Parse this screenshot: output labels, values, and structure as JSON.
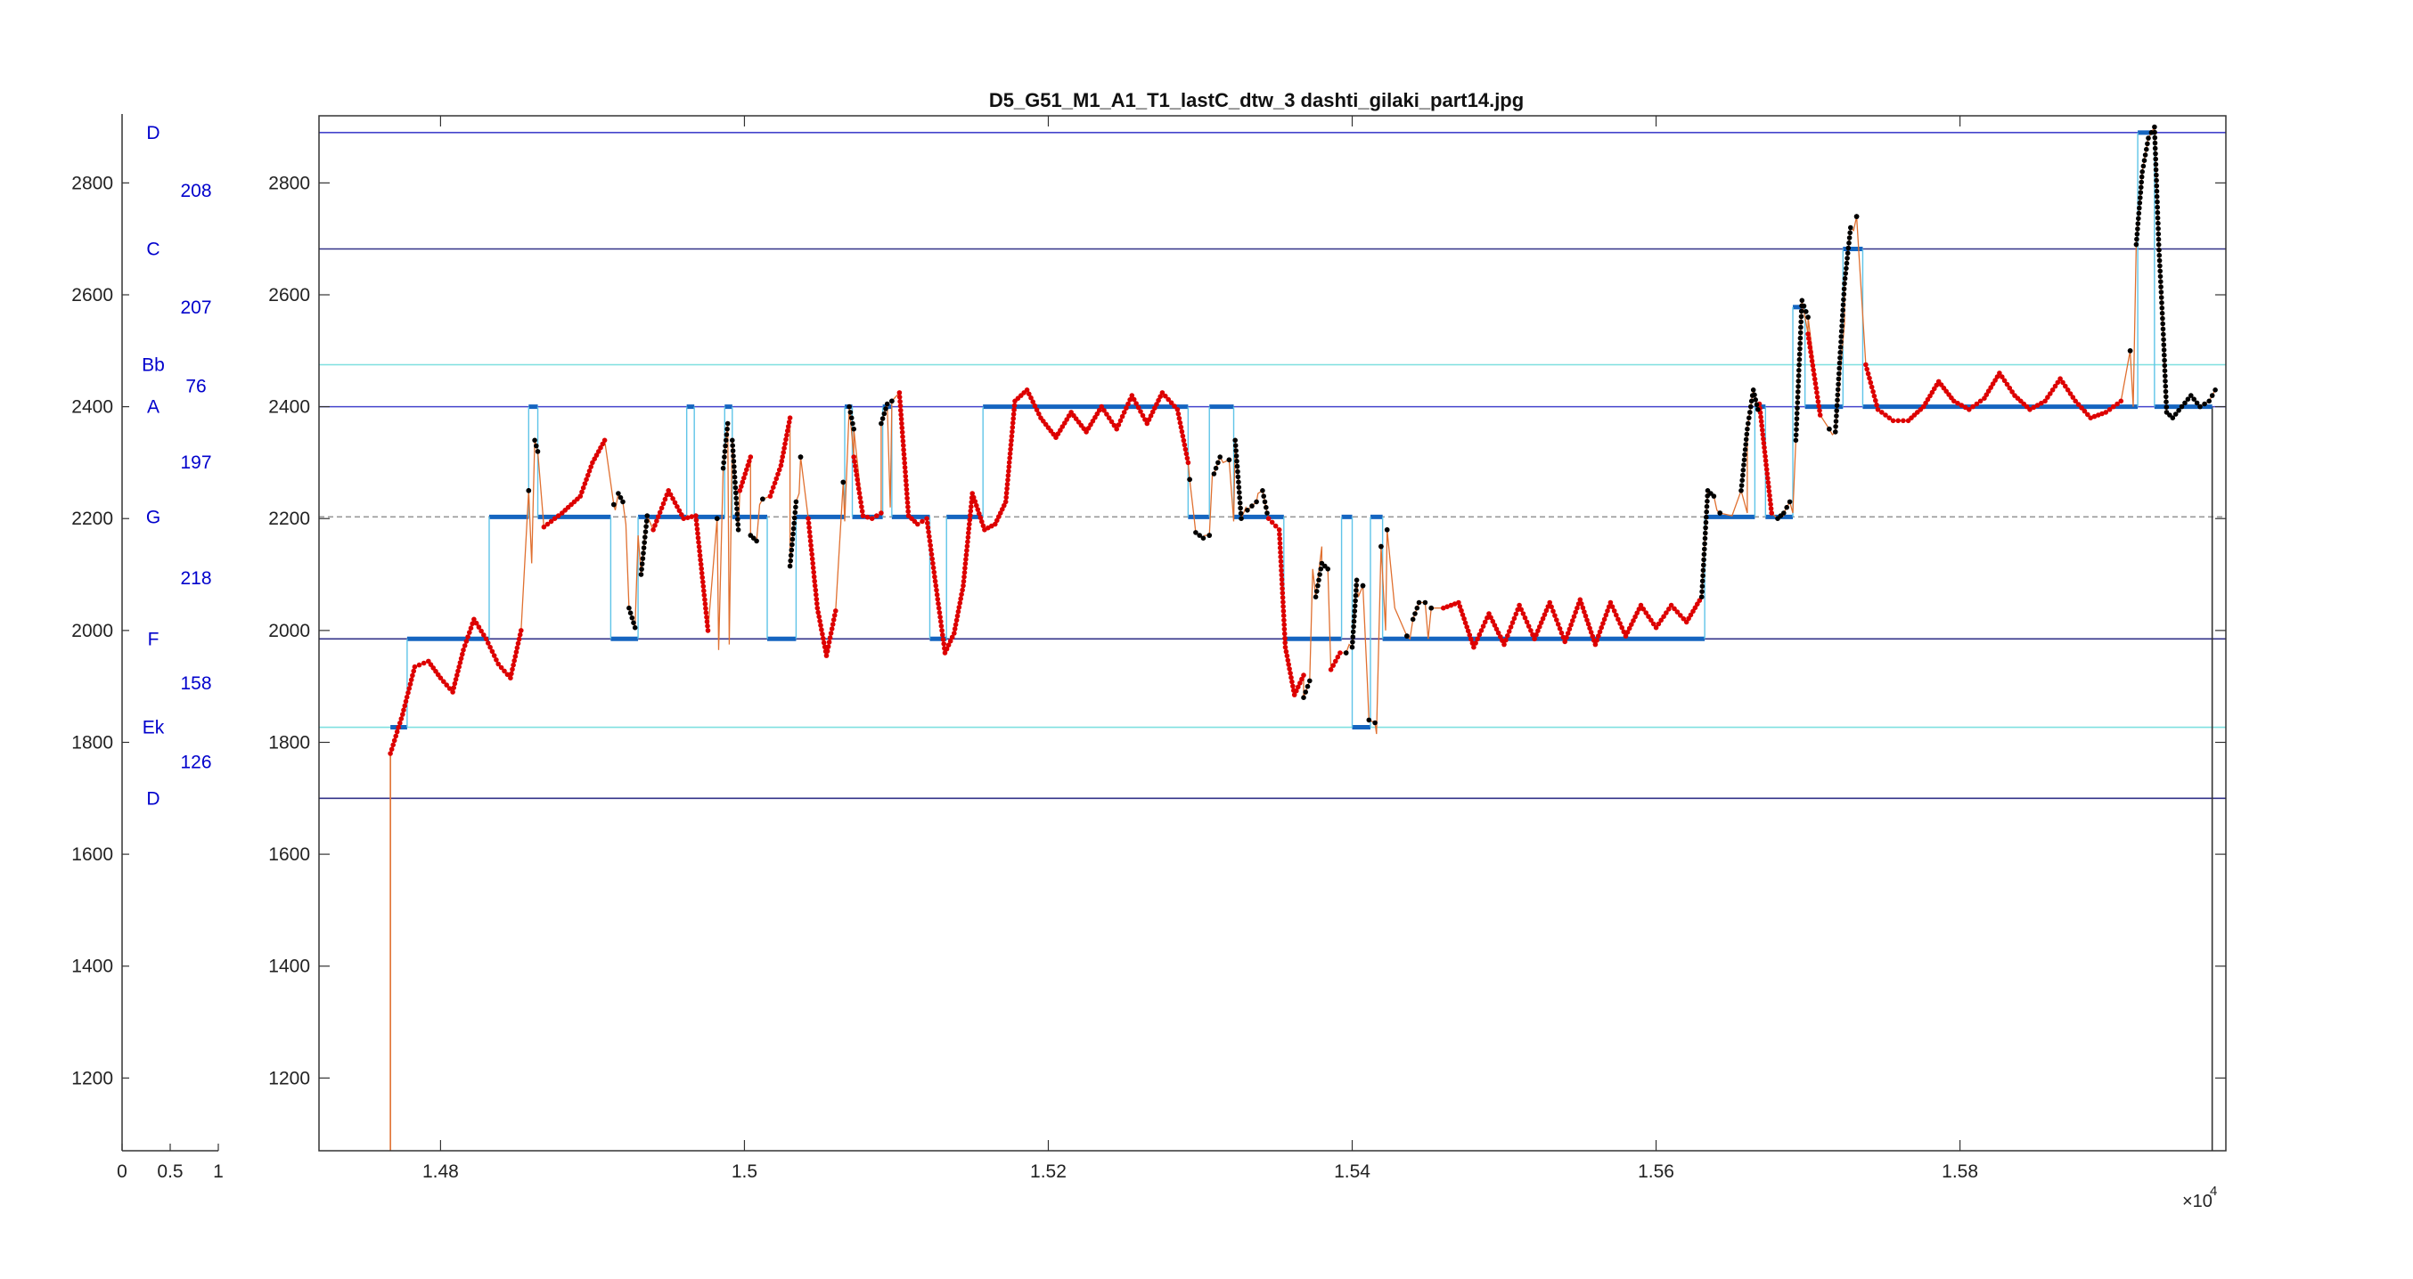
{
  "chart_data": [
    {
      "type": "bar",
      "role": "note-legend",
      "xlim": [
        0,
        1
      ],
      "ylim": [
        1070,
        2920
      ],
      "x_ticks": [
        "0",
        "0.5",
        "1"
      ],
      "y_ticks": [
        "1200",
        "1400",
        "1600",
        "1800",
        "2000",
        "2200",
        "2400",
        "2600",
        "2800"
      ],
      "notes": [
        {
          "name": "D",
          "y": 2890
        },
        {
          "name": "C",
          "y": 2682
        },
        {
          "name": "Bb",
          "y": 2475
        },
        {
          "name": "A",
          "y": 2400
        },
        {
          "name": "G",
          "y": 2203
        },
        {
          "name": "F",
          "y": 1985
        },
        {
          "name": "Ek",
          "y": 1827
        },
        {
          "name": "D",
          "y": 1700
        }
      ],
      "intervals": [
        {
          "value": "208",
          "y": 2786
        },
        {
          "value": "207",
          "y": 2578
        },
        {
          "value": "76",
          "y": 2437
        },
        {
          "value": "197",
          "y": 2301
        },
        {
          "value": "218",
          "y": 2094
        },
        {
          "value": "158",
          "y": 1906
        },
        {
          "value": "126",
          "y": 1765
        }
      ]
    },
    {
      "type": "line",
      "title": "D5_G51_M1_A1_T1_lastC_dtw_3 dashti_gilaki_part14.jpg",
      "xlim": [
        14720,
        15975
      ],
      "ylim": [
        1070,
        2920
      ],
      "x_ticks": [
        "1.48",
        "1.5",
        "1.52",
        "1.54",
        "1.56",
        "1.58"
      ],
      "x_tick_values": [
        14800,
        15000,
        15200,
        15400,
        15600,
        15800
      ],
      "x_exponent": "×10",
      "x_exponent_power": "4",
      "y_ticks": [
        "1200",
        "1400",
        "1600",
        "1800",
        "2000",
        "2200",
        "2400",
        "2600",
        "2800"
      ],
      "reference_lines": [
        {
          "y": 2890,
          "color": "#4444cc"
        },
        {
          "y": 2682,
          "color": "#333388"
        },
        {
          "y": 2475,
          "color": "#7fe0e0"
        },
        {
          "y": 2400,
          "color": "#4444cc"
        },
        {
          "y": 2203,
          "color": "#999999"
        },
        {
          "y": 1985,
          "color": "#333388"
        },
        {
          "y": 1827,
          "color": "#7fe0e0"
        },
        {
          "y": 1700,
          "color": "#333388"
        }
      ],
      "quantized_segments": [
        [
          14767,
          14778,
          1827
        ],
        [
          14778,
          14832,
          1985
        ],
        [
          14832,
          14858,
          2203
        ],
        [
          14858,
          14864,
          2400
        ],
        [
          14864,
          14912,
          2203
        ],
        [
          14912,
          14930,
          1985
        ],
        [
          14930,
          14962,
          2203
        ],
        [
          14962,
          14967,
          2400
        ],
        [
          14967,
          14987,
          2203
        ],
        [
          14987,
          14992,
          2400
        ],
        [
          14992,
          15015,
          2203
        ],
        [
          15015,
          15034,
          1985
        ],
        [
          15034,
          15066,
          2203
        ],
        [
          15066,
          15071,
          2400
        ],
        [
          15071,
          15091,
          2203
        ],
        [
          15091,
          15097,
          2400
        ],
        [
          15097,
          15122,
          2203
        ],
        [
          15122,
          15133,
          1985
        ],
        [
          15133,
          15157,
          2203
        ],
        [
          15157,
          15292,
          2400
        ],
        [
          15292,
          15306,
          2203
        ],
        [
          15306,
          15322,
          2400
        ],
        [
          15322,
          15355,
          2203
        ],
        [
          15355,
          15393,
          1985
        ],
        [
          15393,
          15400,
          2203
        ],
        [
          15400,
          15412,
          1827
        ],
        [
          15412,
          15420,
          2203
        ],
        [
          15420,
          15632,
          1985
        ],
        [
          15632,
          15665,
          2203
        ],
        [
          15665,
          15672,
          2400
        ],
        [
          15672,
          15690,
          2203
        ],
        [
          15690,
          15698,
          2578
        ],
        [
          15698,
          15723,
          2400
        ],
        [
          15723,
          15736,
          2682
        ],
        [
          15736,
          15917,
          2400
        ],
        [
          15917,
          15928,
          2890
        ],
        [
          15928,
          15966,
          2400
        ]
      ],
      "red_anchors": [
        [
          14767,
          1780
        ],
        [
          14775,
          1850
        ],
        [
          14783,
          1935
        ],
        [
          14792,
          1945
        ],
        [
          14800,
          1915
        ],
        [
          14808,
          1890
        ],
        [
          14815,
          1965
        ],
        [
          14822,
          2020
        ],
        [
          14830,
          1985
        ],
        [
          14838,
          1940
        ],
        [
          14846,
          1915
        ],
        [
          14853,
          2000
        ],
        [
          14860,
          2120
        ],
        [
          14868,
          2185
        ],
        [
          14880,
          2210
        ],
        [
          14892,
          2240
        ],
        [
          14900,
          2300
        ],
        [
          14908,
          2340
        ],
        [
          14915,
          2215
        ],
        [
          14922,
          2190
        ],
        [
          14930,
          2170
        ],
        [
          14940,
          2180
        ],
        [
          14950,
          2250
        ],
        [
          14960,
          2200
        ],
        [
          14968,
          2205
        ],
        [
          14976,
          2000
        ],
        [
          14983,
          1965
        ],
        [
          14990,
          1975
        ],
        [
          14997,
          2250
        ],
        [
          15004,
          2310
        ],
        [
          15010,
          2225
        ],
        [
          15017,
          2240
        ],
        [
          15024,
          2295
        ],
        [
          15030,
          2380
        ],
        [
          15036,
          2245
        ],
        [
          15042,
          2200
        ],
        [
          15048,
          2040
        ],
        [
          15054,
          1955
        ],
        [
          15060,
          2035
        ],
        [
          15066,
          2195
        ],
        [
          15072,
          2310
        ],
        [
          15078,
          2205
        ],
        [
          15084,
          2200
        ],
        [
          15090,
          2210
        ],
        [
          15096,
          2220
        ],
        [
          15102,
          2425
        ],
        [
          15108,
          2205
        ],
        [
          15114,
          2190
        ],
        [
          15120,
          2200
        ],
        [
          15126,
          2080
        ],
        [
          15132,
          1960
        ],
        [
          15138,
          1995
        ],
        [
          15144,
          2080
        ],
        [
          15150,
          2245
        ],
        [
          15158,
          2180
        ],
        [
          15165,
          2190
        ],
        [
          15172,
          2230
        ],
        [
          15178,
          2410
        ],
        [
          15186,
          2430
        ],
        [
          15195,
          2380
        ],
        [
          15205,
          2345
        ],
        [
          15215,
          2390
        ],
        [
          15225,
          2355
        ],
        [
          15235,
          2400
        ],
        [
          15245,
          2360
        ],
        [
          15255,
          2420
        ],
        [
          15265,
          2370
        ],
        [
          15275,
          2425
        ],
        [
          15285,
          2395
        ],
        [
          15292,
          2300
        ],
        [
          15296,
          2200
        ],
        [
          15303,
          2170
        ],
        [
          15308,
          2280
        ],
        [
          15315,
          2300
        ],
        [
          15322,
          2195
        ],
        [
          15330,
          2220
        ],
        [
          15338,
          2245
        ],
        [
          15345,
          2200
        ],
        [
          15352,
          2180
        ],
        [
          15356,
          1970
        ],
        [
          15362,
          1885
        ],
        [
          15368,
          1920
        ],
        [
          15374,
          2110
        ],
        [
          15380,
          2150
        ],
        [
          15386,
          1930
        ],
        [
          15392,
          1960
        ],
        [
          15398,
          1975
        ],
        [
          15404,
          2060
        ],
        [
          15410,
          1905
        ],
        [
          15416,
          1815
        ],
        [
          15422,
          2000
        ],
        [
          15428,
          2040
        ],
        [
          15438,
          1985
        ],
        [
          15450,
          1985
        ],
        [
          15460,
          2040
        ],
        [
          15470,
          2050
        ],
        [
          15480,
          1970
        ],
        [
          15490,
          2030
        ],
        [
          15500,
          1975
        ],
        [
          15510,
          2045
        ],
        [
          15520,
          1985
        ],
        [
          15530,
          2050
        ],
        [
          15540,
          1980
        ],
        [
          15550,
          2055
        ],
        [
          15560,
          1975
        ],
        [
          15570,
          2050
        ],
        [
          15580,
          1990
        ],
        [
          15590,
          2045
        ],
        [
          15600,
          2005
        ],
        [
          15610,
          2045
        ],
        [
          15620,
          2015
        ],
        [
          15630,
          2060
        ],
        [
          15640,
          2215
        ],
        [
          15650,
          2205
        ],
        [
          15660,
          2210
        ],
        [
          15668,
          2405
        ],
        [
          15676,
          2210
        ],
        [
          15684,
          2205
        ],
        [
          15690,
          2210
        ],
        [
          15700,
          2530
        ],
        [
          15708,
          2385
        ],
        [
          15716,
          2350
        ],
        [
          15724,
          2550
        ],
        [
          15730,
          2715
        ],
        [
          15738,
          2475
        ],
        [
          15746,
          2395
        ],
        [
          15756,
          2375
        ],
        [
          15766,
          2375
        ],
        [
          15776,
          2400
        ],
        [
          15786,
          2445
        ],
        [
          15796,
          2410
        ],
        [
          15806,
          2395
        ],
        [
          15816,
          2415
        ],
        [
          15826,
          2460
        ],
        [
          15836,
          2420
        ],
        [
          15846,
          2395
        ],
        [
          15856,
          2410
        ],
        [
          15866,
          2450
        ],
        [
          15876,
          2410
        ],
        [
          15886,
          2380
        ],
        [
          15896,
          2390
        ],
        [
          15906,
          2410
        ],
        [
          15914,
          2400
        ]
      ],
      "black_anchors": [
        [
          14858,
          2250
        ],
        [
          14862,
          2340
        ],
        [
          14864,
          2320
        ],
        [
          14914,
          2225
        ],
        [
          14917,
          2245
        ],
        [
          14920,
          2230
        ],
        [
          14924,
          2040
        ],
        [
          14928,
          2005
        ],
        [
          14932,
          2100
        ],
        [
          14936,
          2205
        ],
        [
          14982,
          2200
        ],
        [
          14986,
          2290
        ],
        [
          14989,
          2370
        ],
        [
          14992,
          2340
        ],
        [
          14996,
          2180
        ],
        [
          15004,
          2170
        ],
        [
          15008,
          2160
        ],
        [
          15012,
          2235
        ],
        [
          15030,
          2115
        ],
        [
          15034,
          2230
        ],
        [
          15037,
          2310
        ],
        [
          15065,
          2265
        ],
        [
          15069,
          2400
        ],
        [
          15072,
          2360
        ],
        [
          15090,
          2370
        ],
        [
          15094,
          2405
        ],
        [
          15097,
          2410
        ],
        [
          15293,
          2270
        ],
        [
          15297,
          2175
        ],
        [
          15302,
          2165
        ],
        [
          15306,
          2170
        ],
        [
          15309,
          2280
        ],
        [
          15313,
          2310
        ],
        [
          15319,
          2305
        ],
        [
          15323,
          2340
        ],
        [
          15327,
          2200
        ],
        [
          15331,
          2215
        ],
        [
          15337,
          2230
        ],
        [
          15341,
          2250
        ],
        [
          15344,
          2210
        ],
        [
          15368,
          1880
        ],
        [
          15372,
          1910
        ],
        [
          15376,
          2060
        ],
        [
          15380,
          2120
        ],
        [
          15384,
          2110
        ],
        [
          15396,
          1960
        ],
        [
          15400,
          1970
        ],
        [
          15403,
          2090
        ],
        [
          15407,
          2080
        ],
        [
          15411,
          1840
        ],
        [
          15415,
          1835
        ],
        [
          15419,
          2150
        ],
        [
          15423,
          2180
        ],
        [
          15436,
          1990
        ],
        [
          15440,
          2020
        ],
        [
          15444,
          2050
        ],
        [
          15448,
          2050
        ],
        [
          15452,
          2040
        ],
        [
          15630,
          2060
        ],
        [
          15634,
          2250
        ],
        [
          15638,
          2240
        ],
        [
          15642,
          2210
        ],
        [
          15656,
          2250
        ],
        [
          15660,
          2360
        ],
        [
          15664,
          2430
        ],
        [
          15667,
          2395
        ],
        [
          15680,
          2200
        ],
        [
          15684,
          2210
        ],
        [
          15688,
          2230
        ],
        [
          15692,
          2340
        ],
        [
          15696,
          2590
        ],
        [
          15700,
          2560
        ],
        [
          15714,
          2360
        ],
        [
          15718,
          2355
        ],
        [
          15724,
          2620
        ],
        [
          15728,
          2720
        ],
        [
          15732,
          2740
        ],
        [
          15912,
          2500
        ],
        [
          15916,
          2690
        ],
        [
          15920,
          2820
        ],
        [
          15924,
          2880
        ],
        [
          15928,
          2900
        ],
        [
          15931,
          2680
        ],
        [
          15934,
          2520
        ],
        [
          15936,
          2390
        ],
        [
          15940,
          2380
        ],
        [
          15946,
          2400
        ],
        [
          15952,
          2420
        ],
        [
          15958,
          2400
        ],
        [
          15964,
          2410
        ],
        [
          15968,
          2430
        ]
      ],
      "vertical_lines": [
        {
          "x": 14767,
          "y_from": 1070,
          "y_to": 1780,
          "color": "#e07030"
        },
        {
          "x": 15966,
          "y_from": 1070,
          "y_to": 2400,
          "color": "#333333"
        }
      ],
      "colors": {
        "pitch_dots": "#dd0000",
        "pitch_dots_alt": "#000000",
        "pitch_line": "#e07030",
        "quantized": "#1565c0",
        "quantized_edge": "#5fc4e8",
        "note_label": "#0000cc"
      }
    }
  ]
}
